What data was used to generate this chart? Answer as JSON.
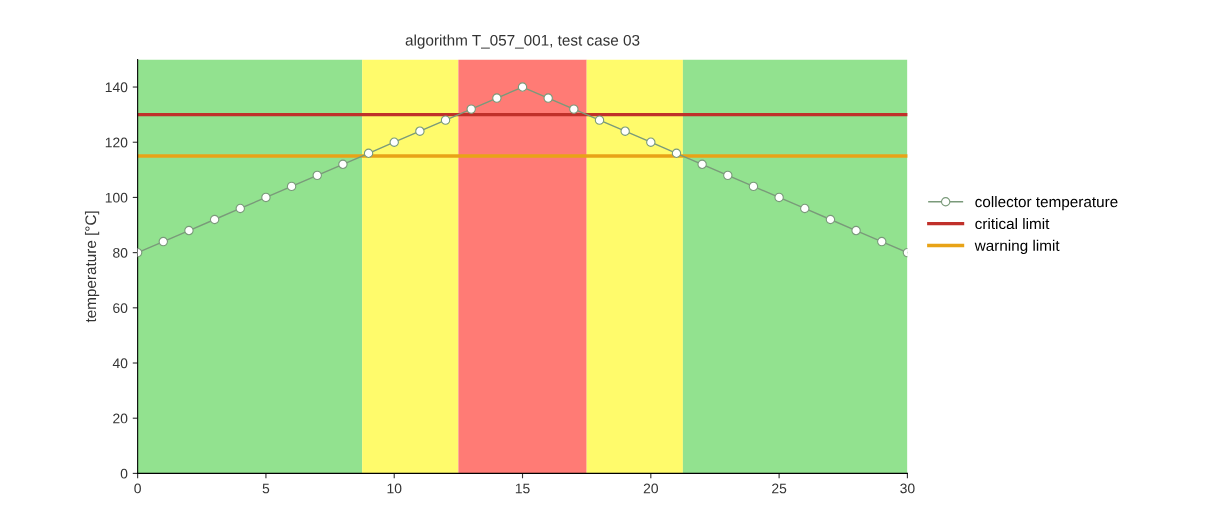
{
  "chart_data": {
    "type": "line",
    "title": "algorithm T_057_001, test case 03",
    "ylabel": "temperature [°C]",
    "x": [
      0,
      1,
      2,
      3,
      4,
      5,
      6,
      7,
      8,
      9,
      10,
      11,
      12,
      13,
      14,
      15,
      16,
      17,
      18,
      19,
      20,
      21,
      22,
      23,
      24,
      25,
      26,
      27,
      28,
      29,
      30
    ],
    "series": [
      {
        "name": "collector temperature",
        "color": "#7a9a7a",
        "values": [
          80,
          84,
          88,
          92,
          96,
          100,
          104,
          108,
          112,
          116,
          120,
          124,
          128,
          132,
          136,
          140,
          136,
          132,
          128,
          124,
          120,
          116,
          112,
          108,
          104,
          100,
          96,
          92,
          88,
          84,
          80
        ]
      }
    ],
    "xlim": [
      0,
      30
    ],
    "xticks": [
      0,
      5,
      10,
      15,
      20,
      25,
      30
    ],
    "ylim": [
      0,
      150
    ],
    "yticks": [
      0,
      20,
      40,
      60,
      80,
      100,
      120,
      140
    ],
    "ref_lines": [
      {
        "axis": "y",
        "value": 130,
        "label": "critical limit",
        "color": "#c0302a"
      },
      {
        "axis": "y",
        "value": 115,
        "label": "warning limit",
        "color": "#e8a317"
      }
    ],
    "bands": [
      {
        "axis": "x",
        "from": 0,
        "to": 8.75,
        "color": "#92e28f"
      },
      {
        "axis": "x",
        "from": 8.75,
        "to": 12.5,
        "color": "#fffb6b"
      },
      {
        "axis": "x",
        "from": 12.5,
        "to": 17.5,
        "color": "#ff7b75"
      },
      {
        "axis": "x",
        "from": 17.5,
        "to": 21.25,
        "color": "#fffb6b"
      },
      {
        "axis": "x",
        "from": 21.25,
        "to": 30,
        "color": "#92e28f"
      }
    ],
    "marker": "circle",
    "line_style": "solid",
    "grid": false,
    "legend": "right"
  }
}
